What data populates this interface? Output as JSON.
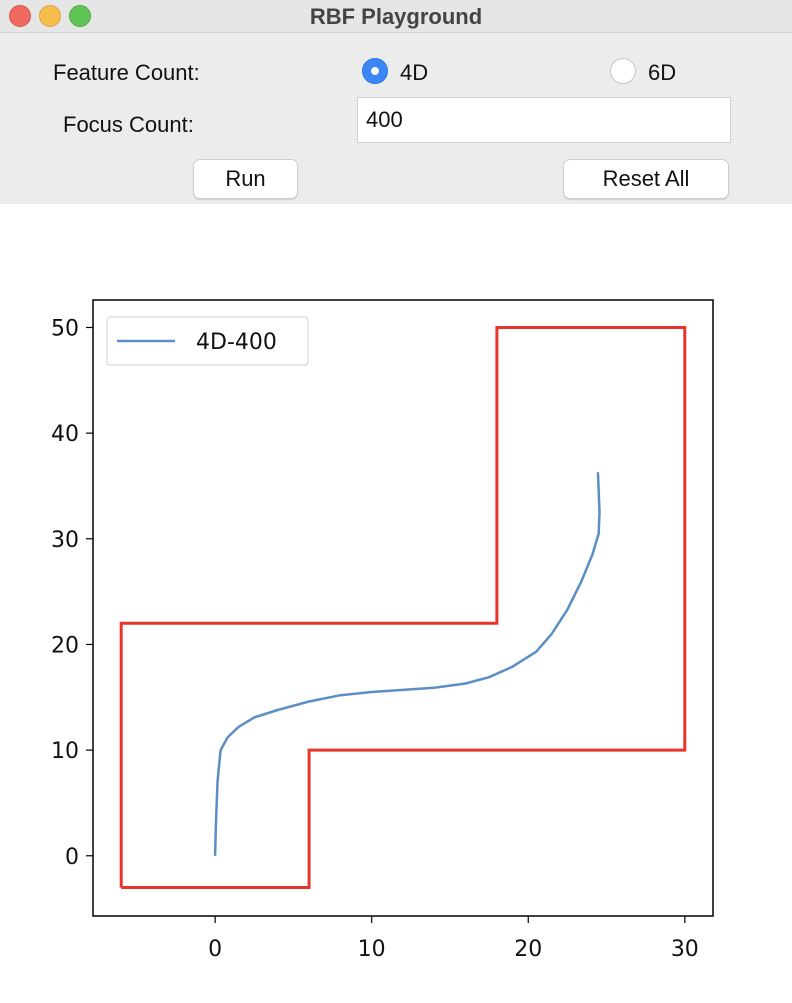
{
  "window": {
    "title": "RBF Playground"
  },
  "controls": {
    "feature_count_label": "Feature Count:",
    "feature_options": [
      {
        "label": "4D",
        "selected": true
      },
      {
        "label": "6D",
        "selected": false
      }
    ],
    "focus_count_label": "Focus Count:",
    "focus_count_value": "400",
    "run_label": "Run",
    "reset_label": "Reset All"
  },
  "colors": {
    "accent": "#3a87f5",
    "boundary": "#e8352c",
    "series": "#5b8fc4"
  },
  "chart_data": {
    "type": "line",
    "title": "",
    "xlabel": "",
    "ylabel": "",
    "xlim": [
      -7.8,
      31.8
    ],
    "ylim": [
      -5.7,
      52.6
    ],
    "xticks": [
      0,
      10,
      20,
      30
    ],
    "yticks": [
      0,
      10,
      20,
      30,
      40,
      50
    ],
    "grid": false,
    "legend_position": "upper-left",
    "series": [
      {
        "name": "4D-400",
        "color": "#5b8fc4",
        "x": [
          0,
          0.05,
          0.15,
          0.35,
          0.8,
          1.5,
          2.5,
          4,
          6,
          8,
          10,
          12,
          14,
          16,
          17.5,
          19,
          20.5,
          21.5,
          22.5,
          23.4,
          24.1,
          24.5,
          24.55,
          24.5,
          24.45
        ],
        "y": [
          0,
          3,
          7,
          10,
          11.2,
          12.2,
          13.1,
          13.8,
          14.6,
          15.2,
          15.5,
          15.7,
          15.9,
          16.3,
          16.9,
          17.9,
          19.3,
          21,
          23.3,
          26,
          28.5,
          30.5,
          32.5,
          34.5,
          36.3
        ]
      },
      {
        "name": "",
        "color": "#e8352c",
        "x": [
          -6,
          6,
          6,
          30,
          30,
          18,
          18,
          -6,
          -6
        ],
        "y": [
          -3,
          -3,
          10,
          10,
          50,
          50,
          22,
          22,
          -3
        ]
      }
    ]
  }
}
